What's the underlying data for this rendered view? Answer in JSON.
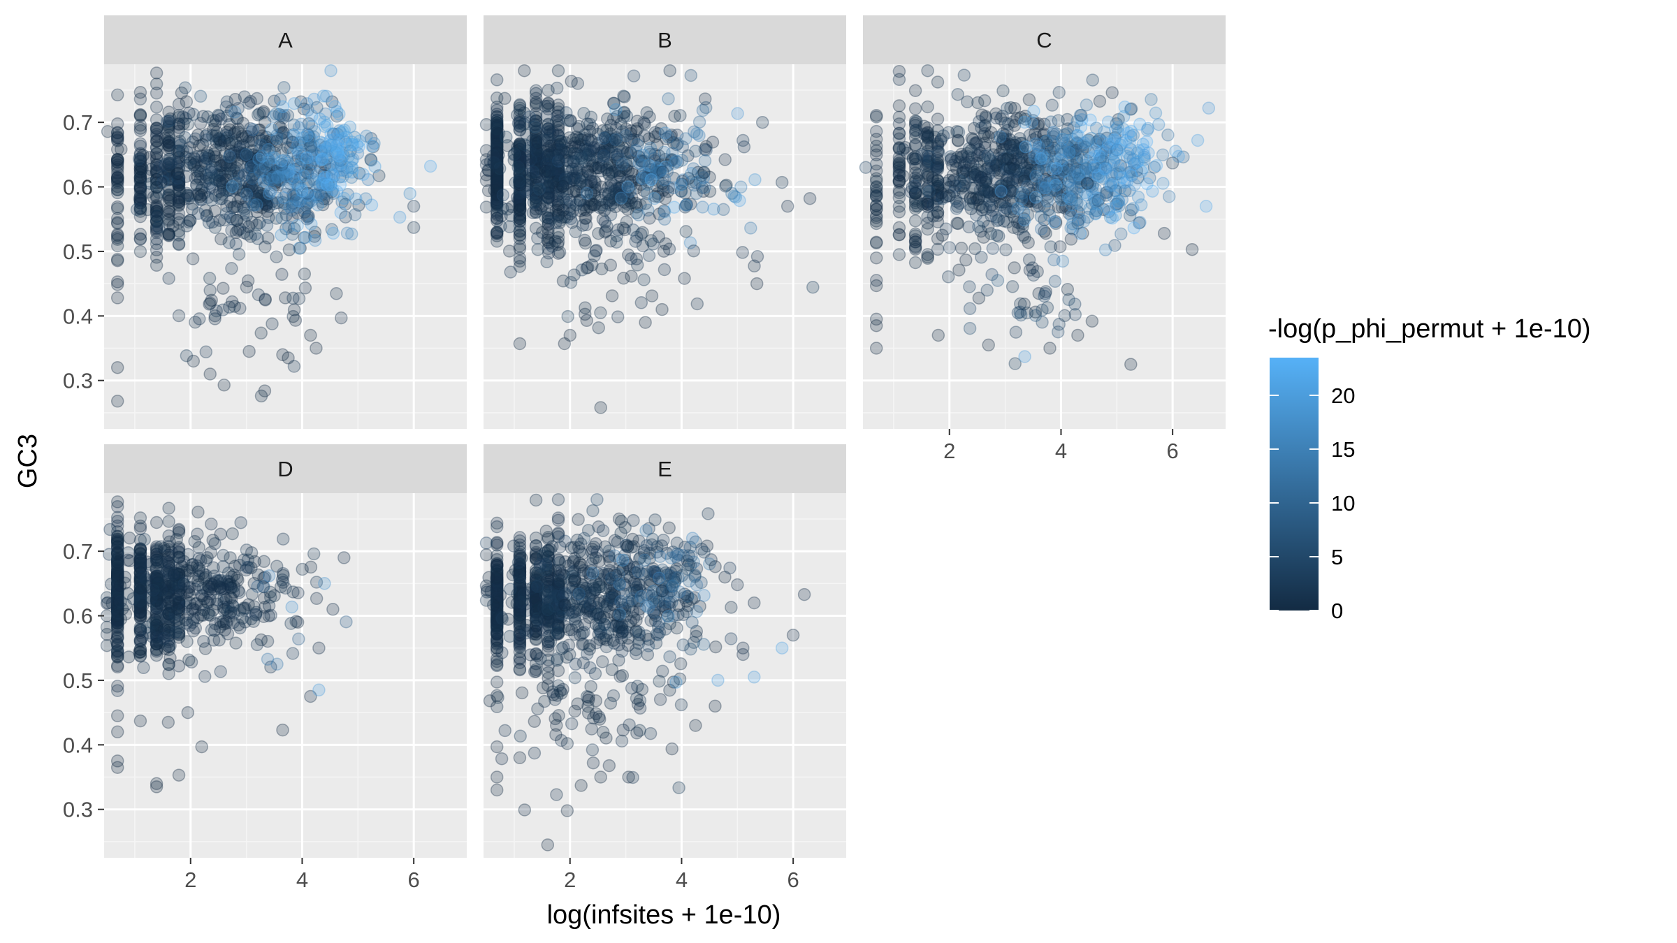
{
  "chart_data": {
    "type": "scatter",
    "xlabel": "log(infsites + 1e-10)",
    "ylabel": "GC3",
    "xlim": [
      0.45,
      6.95
    ],
    "ylim": [
      0.225,
      0.79
    ],
    "x_ticks": [
      2,
      4,
      6
    ],
    "y_ticks": [
      0.3,
      0.4,
      0.5,
      0.6,
      0.7
    ],
    "x_ticks_labels": [
      "2",
      "4",
      "6"
    ],
    "y_ticks_labels": [
      "0.3",
      "0.4",
      "0.5",
      "0.6",
      "0.7"
    ],
    "grid": true,
    "point_alpha": 0.25,
    "legend": {
      "title": "-log(p_phi_permut + 1e-10)",
      "position": "right",
      "min": 0,
      "max": 23.5,
      "ticks": [
        0,
        5,
        10,
        15,
        20
      ],
      "tick_labels": [
        "0",
        "5",
        "10",
        "15",
        "20"
      ],
      "low_color": "#132B43",
      "high_color": "#56B1F7"
    },
    "facets": [
      {
        "label": "A",
        "clusters": [
          {
            "n": 520,
            "x_mean": 2.9,
            "x_sd": 0.75,
            "y_mean": 0.625,
            "y_sd": 0.052,
            "c_mean": 2,
            "c_sd": 2
          },
          {
            "n": 230,
            "x_mean": 4.1,
            "x_sd": 0.55,
            "y_mean": 0.635,
            "y_sd": 0.05,
            "c_mean": 14,
            "c_sd": 5
          },
          {
            "n": 60,
            "x_mean": 4.6,
            "x_sd": 0.3,
            "y_mean": 0.65,
            "y_sd": 0.03,
            "c_mean": 21,
            "c_sd": 2
          },
          {
            "n": 40,
            "x_mean": 3.0,
            "x_sd": 0.8,
            "y_mean": 0.43,
            "y_sd": 0.05,
            "c_mean": 1,
            "c_sd": 1
          }
        ],
        "columns": [
          {
            "x": 0.69,
            "n": 45,
            "y_mean": 0.6,
            "y_sd": 0.07,
            "c_mean": 0
          },
          {
            "x": 1.1,
            "n": 55,
            "y_mean": 0.615,
            "y_sd": 0.06,
            "c_mean": 0
          },
          {
            "x": 1.39,
            "n": 60,
            "y_mean": 0.62,
            "y_sd": 0.06,
            "c_mean": 0
          },
          {
            "x": 1.61,
            "n": 50,
            "y_mean": 0.62,
            "y_sd": 0.055,
            "c_mean": 0
          },
          {
            "x": 1.79,
            "n": 45,
            "y_mean": 0.62,
            "y_sd": 0.055,
            "c_mean": 0
          }
        ],
        "points": [
          {
            "x": 0.69,
            "y": 0.32,
            "c": 0
          },
          {
            "x": 0.69,
            "y": 0.268,
            "c": 0
          },
          {
            "x": 0.69,
            "y": 0.428,
            "c": 0
          },
          {
            "x": 2.6,
            "y": 0.293,
            "c": 0
          },
          {
            "x": 2.35,
            "y": 0.31,
            "c": 0
          },
          {
            "x": 2.05,
            "y": 0.33,
            "c": 0
          },
          {
            "x": 3.05,
            "y": 0.345,
            "c": 0
          },
          {
            "x": 3.65,
            "y": 0.34,
            "c": 0
          },
          {
            "x": 3.75,
            "y": 0.335,
            "c": 0
          },
          {
            "x": 4.25,
            "y": 0.35,
            "c": 0
          },
          {
            "x": 4.15,
            "y": 0.37,
            "c": 0
          },
          {
            "x": 4.7,
            "y": 0.397,
            "c": 1
          },
          {
            "x": 6.3,
            "y": 0.632,
            "c": 22
          },
          {
            "x": 6.0,
            "y": 0.57,
            "c": 3
          },
          {
            "x": 6.0,
            "y": 0.537,
            "c": 2
          },
          {
            "x": 5.75,
            "y": 0.553,
            "c": 20
          }
        ]
      },
      {
        "label": "B",
        "clusters": [
          {
            "n": 560,
            "x_mean": 2.3,
            "x_sd": 0.85,
            "y_mean": 0.625,
            "y_sd": 0.05,
            "c_mean": 1.5,
            "c_sd": 1.5
          },
          {
            "n": 120,
            "x_mean": 3.7,
            "x_sd": 0.6,
            "y_mean": 0.63,
            "y_sd": 0.05,
            "c_mean": 11,
            "c_sd": 6
          },
          {
            "n": 50,
            "x_mean": 2.8,
            "x_sd": 0.9,
            "y_mean": 0.47,
            "y_sd": 0.04,
            "c_mean": 1,
            "c_sd": 1
          }
        ],
        "columns": [
          {
            "x": 0.69,
            "n": 170,
            "y_mean": 0.625,
            "y_sd": 0.05,
            "c_mean": 0
          },
          {
            "x": 1.1,
            "n": 110,
            "y_mean": 0.625,
            "y_sd": 0.05,
            "c_mean": 0
          },
          {
            "x": 1.39,
            "n": 80,
            "y_mean": 0.625,
            "y_sd": 0.05,
            "c_mean": 0
          },
          {
            "x": 1.61,
            "n": 60,
            "y_mean": 0.625,
            "y_sd": 0.05,
            "c_mean": 0
          },
          {
            "x": 1.79,
            "n": 50,
            "y_mean": 0.625,
            "y_sd": 0.05,
            "c_mean": 0
          }
        ],
        "points": [
          {
            "x": 2.55,
            "y": 0.258,
            "c": 0
          },
          {
            "x": 1.1,
            "y": 0.357,
            "c": 0
          },
          {
            "x": 1.9,
            "y": 0.357,
            "c": 0
          },
          {
            "x": 2.0,
            "y": 0.37,
            "c": 0
          },
          {
            "x": 2.3,
            "y": 0.393,
            "c": 0
          },
          {
            "x": 3.35,
            "y": 0.39,
            "c": 0
          },
          {
            "x": 3.65,
            "y": 0.41,
            "c": 0
          },
          {
            "x": 5.35,
            "y": 0.45,
            "c": 0
          },
          {
            "x": 5.9,
            "y": 0.57,
            "c": 1
          },
          {
            "x": 6.3,
            "y": 0.582,
            "c": 1
          },
          {
            "x": 5.8,
            "y": 0.607,
            "c": 2
          },
          {
            "x": 5.45,
            "y": 0.7,
            "c": 2
          },
          {
            "x": 5.1,
            "y": 0.672,
            "c": 3
          },
          {
            "x": 4.9,
            "y": 0.59,
            "c": 12
          },
          {
            "x": 4.75,
            "y": 0.565,
            "c": 10
          }
        ]
      },
      {
        "label": "C",
        "clusters": [
          {
            "n": 520,
            "x_mean": 3.0,
            "x_sd": 0.8,
            "y_mean": 0.625,
            "y_sd": 0.05,
            "c_mean": 2,
            "c_sd": 2
          },
          {
            "n": 260,
            "x_mean": 4.4,
            "x_sd": 0.6,
            "y_mean": 0.625,
            "y_sd": 0.05,
            "c_mean": 15,
            "c_sd": 5
          },
          {
            "n": 60,
            "x_mean": 5.2,
            "x_sd": 0.4,
            "y_mean": 0.65,
            "y_sd": 0.035,
            "c_mean": 20,
            "c_sd": 3
          },
          {
            "n": 45,
            "x_mean": 3.4,
            "x_sd": 0.8,
            "y_mean": 0.44,
            "y_sd": 0.045,
            "c_mean": 3,
            "c_sd": 3
          }
        ],
        "columns": [
          {
            "x": 0.69,
            "n": 30,
            "y_mean": 0.6,
            "y_sd": 0.07,
            "c_mean": 0
          },
          {
            "x": 1.1,
            "n": 35,
            "y_mean": 0.61,
            "y_sd": 0.06,
            "c_mean": 0
          },
          {
            "x": 1.39,
            "n": 40,
            "y_mean": 0.615,
            "y_sd": 0.06,
            "c_mean": 0
          },
          {
            "x": 1.61,
            "n": 40,
            "y_mean": 0.615,
            "y_sd": 0.055,
            "c_mean": 0
          },
          {
            "x": 1.79,
            "n": 35,
            "y_mean": 0.62,
            "y_sd": 0.055,
            "c_mean": 0
          }
        ],
        "points": [
          {
            "x": 0.69,
            "y": 0.35,
            "c": 0
          },
          {
            "x": 0.69,
            "y": 0.385,
            "c": 0
          },
          {
            "x": 0.69,
            "y": 0.395,
            "c": 0
          },
          {
            "x": 0.69,
            "y": 0.49,
            "c": 0
          },
          {
            "x": 1.8,
            "y": 0.37,
            "c": 0
          },
          {
            "x": 2.7,
            "y": 0.355,
            "c": 0
          },
          {
            "x": 3.35,
            "y": 0.337,
            "c": 20
          },
          {
            "x": 3.8,
            "y": 0.35,
            "c": 0
          },
          {
            "x": 4.3,
            "y": 0.37,
            "c": 0
          },
          {
            "x": 5.25,
            "y": 0.325,
            "c": 0
          },
          {
            "x": 6.35,
            "y": 0.503,
            "c": 0
          },
          {
            "x": 6.0,
            "y": 0.637,
            "c": 2
          },
          {
            "x": 6.6,
            "y": 0.57,
            "c": 22
          },
          {
            "x": 6.45,
            "y": 0.672,
            "c": 21
          },
          {
            "x": 5.85,
            "y": 0.528,
            "c": 1
          }
        ]
      },
      {
        "label": "D",
        "clusters": [
          {
            "n": 340,
            "x_mean": 2.1,
            "x_sd": 0.8,
            "y_mean": 0.635,
            "y_sd": 0.045,
            "c_mean": 1,
            "c_sd": 1
          },
          {
            "n": 15,
            "x_mean": 3.7,
            "x_sd": 0.4,
            "y_mean": 0.6,
            "y_sd": 0.06,
            "c_mean": 8,
            "c_sd": 6
          }
        ],
        "columns": [
          {
            "x": 0.69,
            "n": 150,
            "y_mean": 0.635,
            "y_sd": 0.05,
            "c_mean": 0
          },
          {
            "x": 1.1,
            "n": 110,
            "y_mean": 0.63,
            "y_sd": 0.05,
            "c_mean": 0
          },
          {
            "x": 1.39,
            "n": 80,
            "y_mean": 0.63,
            "y_sd": 0.05,
            "c_mean": 0
          },
          {
            "x": 1.61,
            "n": 60,
            "y_mean": 0.63,
            "y_sd": 0.05,
            "c_mean": 0
          },
          {
            "x": 1.79,
            "n": 45,
            "y_mean": 0.63,
            "y_sd": 0.05,
            "c_mean": 0
          }
        ],
        "points": [
          {
            "x": 0.69,
            "y": 0.365,
            "c": 0
          },
          {
            "x": 0.69,
            "y": 0.375,
            "c": 0
          },
          {
            "x": 0.69,
            "y": 0.42,
            "c": 0
          },
          {
            "x": 0.69,
            "y": 0.445,
            "c": 0
          },
          {
            "x": 1.1,
            "y": 0.437,
            "c": 0
          },
          {
            "x": 1.39,
            "y": 0.335,
            "c": 0
          },
          {
            "x": 1.39,
            "y": 0.34,
            "c": 0
          },
          {
            "x": 1.79,
            "y": 0.353,
            "c": 0
          },
          {
            "x": 2.2,
            "y": 0.397,
            "c": 0
          },
          {
            "x": 1.95,
            "y": 0.45,
            "c": 0
          },
          {
            "x": 1.6,
            "y": 0.435,
            "c": 0
          },
          {
            "x": 3.65,
            "y": 0.423,
            "c": 0
          },
          {
            "x": 4.15,
            "y": 0.475,
            "c": 1
          },
          {
            "x": 4.3,
            "y": 0.485,
            "c": 20
          },
          {
            "x": 4.75,
            "y": 0.69,
            "c": 1
          },
          {
            "x": 4.55,
            "y": 0.61,
            "c": 1
          },
          {
            "x": 4.3,
            "y": 0.55,
            "c": 1
          },
          {
            "x": 4.4,
            "y": 0.65,
            "c": 18
          },
          {
            "x": 3.55,
            "y": 0.525,
            "c": 14
          }
        ]
      },
      {
        "label": "E",
        "clusters": [
          {
            "n": 480,
            "x_mean": 2.4,
            "x_sd": 0.85,
            "y_mean": 0.63,
            "y_sd": 0.05,
            "c_mean": 1.5,
            "c_sd": 1.5
          },
          {
            "n": 110,
            "x_mean": 3.7,
            "x_sd": 0.5,
            "y_mean": 0.64,
            "y_sd": 0.04,
            "c_mean": 8,
            "c_sd": 5
          },
          {
            "n": 80,
            "x_mean": 2.4,
            "x_sd": 0.8,
            "y_mean": 0.45,
            "y_sd": 0.05,
            "c_mean": 1,
            "c_sd": 1
          }
        ],
        "columns": [
          {
            "x": 0.69,
            "n": 140,
            "y_mean": 0.625,
            "y_sd": 0.05,
            "c_mean": 0
          },
          {
            "x": 1.1,
            "n": 110,
            "y_mean": 0.625,
            "y_sd": 0.05,
            "c_mean": 0
          },
          {
            "x": 1.39,
            "n": 80,
            "y_mean": 0.625,
            "y_sd": 0.05,
            "c_mean": 0
          },
          {
            "x": 1.61,
            "n": 60,
            "y_mean": 0.625,
            "y_sd": 0.05,
            "c_mean": 0
          },
          {
            "x": 1.79,
            "n": 50,
            "y_mean": 0.625,
            "y_sd": 0.05,
            "c_mean": 0
          }
        ],
        "points": [
          {
            "x": 1.6,
            "y": 0.245,
            "c": 0
          },
          {
            "x": 1.95,
            "y": 0.298,
            "c": 0
          },
          {
            "x": 0.69,
            "y": 0.33,
            "c": 0
          },
          {
            "x": 0.69,
            "y": 0.35,
            "c": 0
          },
          {
            "x": 0.69,
            "y": 0.397,
            "c": 0
          },
          {
            "x": 1.1,
            "y": 0.38,
            "c": 0
          },
          {
            "x": 2.2,
            "y": 0.337,
            "c": 0
          },
          {
            "x": 2.55,
            "y": 0.35,
            "c": 0
          },
          {
            "x": 3.05,
            "y": 0.35,
            "c": 0
          },
          {
            "x": 4.25,
            "y": 0.43,
            "c": 0
          },
          {
            "x": 4.6,
            "y": 0.46,
            "c": 0
          },
          {
            "x": 4.65,
            "y": 0.5,
            "c": 20
          },
          {
            "x": 3.9,
            "y": 0.497,
            "c": 19
          },
          {
            "x": 5.3,
            "y": 0.505,
            "c": 20
          },
          {
            "x": 5.8,
            "y": 0.55,
            "c": 21
          },
          {
            "x": 6.0,
            "y": 0.57,
            "c": 1
          },
          {
            "x": 6.2,
            "y": 0.633,
            "c": 1
          },
          {
            "x": 5.3,
            "y": 0.62,
            "c": 1
          },
          {
            "x": 5.1,
            "y": 0.55,
            "c": 1
          },
          {
            "x": 5.1,
            "y": 0.54,
            "c": 1
          }
        ]
      }
    ]
  }
}
